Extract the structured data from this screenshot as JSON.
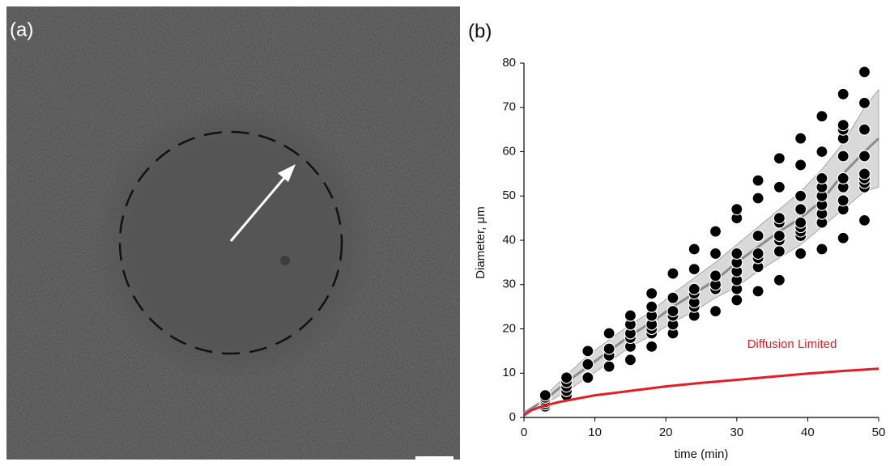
{
  "image_panel": {
    "label": "(a)"
  },
  "chart_data": {
    "type": "scatter",
    "panel_label": "(b)",
    "x_label": "time (min)",
    "y_label": "Diameter, μm",
    "xlim": [
      0,
      50
    ],
    "xticks": [
      0,
      10,
      20,
      30,
      40,
      50
    ],
    "ylim": [
      0,
      80
    ],
    "yticks": [
      0,
      10,
      20,
      30,
      40,
      50,
      60,
      70,
      80
    ],
    "annotation": "Diffusion Limited",
    "annotation_color": "#e31e24",
    "series": [
      {
        "type": "band",
        "color": "#d9d9d9",
        "x": [
          3,
          6,
          9,
          12,
          15,
          18,
          21,
          24,
          27,
          30,
          33,
          36,
          39,
          42,
          45,
          48,
          50
        ],
        "lower": [
          3,
          6,
          9,
          12.5,
          16,
          18.5,
          21.5,
          24,
          27,
          29.5,
          33,
          36,
          39,
          43,
          47,
          51,
          52
        ],
        "upper": [
          5,
          9.5,
          14,
          17.5,
          21,
          24,
          28,
          31.5,
          35,
          39,
          43,
          47,
          51,
          56,
          62,
          70,
          74
        ]
      },
      {
        "type": "line",
        "color": "#8c8c8c",
        "x": [
          0,
          3,
          6,
          9,
          12,
          15,
          18,
          21,
          24,
          27,
          30,
          33,
          36,
          39,
          42,
          45,
          48,
          50
        ],
        "values": [
          1,
          4,
          8,
          11.5,
          15,
          18.5,
          21.5,
          25,
          28,
          31,
          35,
          38.5,
          42,
          45,
          49,
          55,
          60,
          63
        ]
      },
      {
        "type": "scatter",
        "color": "#000000",
        "x": [
          3,
          3,
          3,
          3,
          3,
          3,
          6,
          6,
          6,
          6,
          6,
          9,
          9,
          9,
          12,
          12,
          12,
          12,
          15,
          15,
          15,
          15,
          15,
          15,
          18,
          18,
          18,
          18,
          18,
          18,
          18,
          21,
          21,
          21,
          21,
          21,
          21,
          24,
          24,
          24,
          24,
          24,
          24,
          24,
          27,
          27,
          27,
          27,
          27,
          27,
          30,
          30,
          30,
          30,
          30,
          30,
          30,
          30,
          33,
          33,
          33,
          33,
          33,
          33,
          33,
          36,
          36,
          36,
          36,
          36,
          36,
          36,
          36,
          39,
          39,
          39,
          39,
          39,
          39,
          39,
          39,
          39,
          42,
          42,
          42,
          42,
          42,
          42,
          42,
          42,
          42,
          45,
          45,
          45,
          45,
          45,
          45,
          45,
          45,
          45,
          45,
          48,
          48,
          48,
          48,
          48,
          48,
          48,
          48,
          48
        ],
        "values": [
          2.5,
          3,
          3.5,
          4,
          4.5,
          5,
          5,
          6,
          7,
          8,
          9,
          9,
          12,
          15,
          11.5,
          14,
          15.5,
          19,
          13,
          16,
          18,
          19,
          21,
          23,
          16,
          19,
          20,
          21,
          23,
          25,
          28,
          19,
          21,
          23,
          24,
          27,
          32.5,
          23,
          25,
          26,
          28,
          29,
          33.5,
          38,
          24,
          29,
          30,
          32,
          37,
          42,
          26.5,
          29,
          31,
          33,
          35,
          37,
          45,
          47,
          28.5,
          34,
          36,
          37,
          41,
          49.5,
          53.5,
          31,
          37.5,
          40,
          41,
          44,
          45,
          52,
          58.5,
          37,
          41,
          42,
          43,
          44,
          47,
          50,
          57,
          63,
          38,
          44,
          46,
          48,
          50,
          52,
          54,
          60,
          68,
          40.5,
          47,
          49,
          52,
          54,
          59,
          63,
          65,
          66,
          73,
          44.5,
          52,
          53,
          54,
          55,
          59,
          65,
          71,
          78
        ]
      },
      {
        "type": "line",
        "color": "#e31e24",
        "x": [
          0,
          1,
          2,
          3,
          5,
          10,
          15,
          20,
          25,
          30,
          35,
          40,
          45,
          50
        ],
        "values": [
          0.5,
          1.6,
          2.2,
          2.7,
          3.5,
          5,
          6,
          7,
          7.8,
          8.5,
          9.2,
          9.9,
          10.5,
          11
        ]
      }
    ]
  }
}
